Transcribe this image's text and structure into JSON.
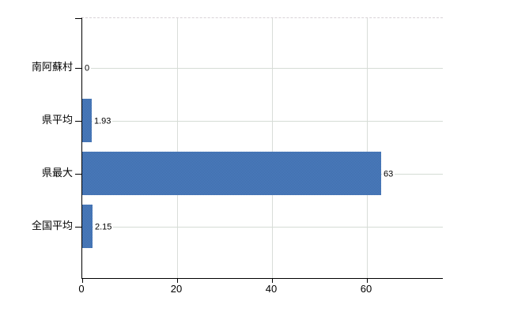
{
  "chart_data": {
    "type": "bar",
    "orientation": "horizontal",
    "title": "",
    "xlabel": "",
    "ylabel": "",
    "categories": [
      "南阿蘇村",
      "県平均",
      "県最大",
      "全国平均"
    ],
    "values": [
      0,
      1.93,
      63,
      2.15
    ],
    "value_labels": [
      "0",
      "1.93",
      "63",
      "2.15"
    ],
    "x_ticks": [
      0,
      20,
      40,
      60
    ],
    "x_tick_labels": [
      "0",
      "20",
      "40",
      "60"
    ],
    "xlim": [
      0,
      76.2
    ],
    "grid": true,
    "grid_vertical_at": [
      20,
      40,
      60
    ],
    "legend_position": "none",
    "colors": {
      "bar": "#4574b5",
      "bar_dither_dark": "#3d6aa6",
      "bar_dither_light": "#4e80c4",
      "grid": "#d5dcd5",
      "grid_vertical": "#d9ddd9",
      "axis": "#000000",
      "text": "#000000",
      "background": "#ffffff"
    }
  }
}
